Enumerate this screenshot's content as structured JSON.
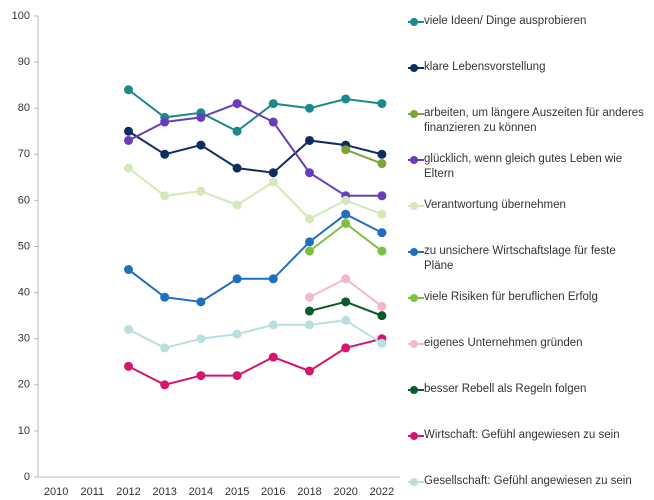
{
  "chart_data": {
    "type": "line",
    "categories": [
      "2010",
      "2011",
      "2012",
      "2013",
      "2014",
      "2015",
      "2016",
      "2018",
      "2020",
      "2022"
    ],
    "ylim": [
      0,
      100
    ],
    "yticks": [
      0,
      10,
      20,
      30,
      40,
      50,
      60,
      70,
      80,
      90,
      100
    ],
    "series": [
      {
        "name": "viele Ideen/ Dinge ausprobieren",
        "color": "#1a8a8a",
        "values": [
          null,
          null,
          84,
          78,
          79,
          75,
          81,
          80,
          82,
          81
        ]
      },
      {
        "name": "klare Lebensvorstellung",
        "color": "#0d2d5e",
        "values": [
          null,
          null,
          75,
          70,
          72,
          67,
          66,
          73,
          72,
          70
        ]
      },
      {
        "name": "arbeiten, um längere Auszeiten für anderes finanzieren zu können",
        "color": "#7fa33a",
        "values": [
          null,
          null,
          null,
          null,
          null,
          null,
          null,
          null,
          71,
          68
        ]
      },
      {
        "name": "glücklich, wenn gleich gutes Leben wie Eltern",
        "color": "#6a3db8",
        "values": [
          null,
          null,
          73,
          77,
          78,
          81,
          77,
          66,
          61,
          61
        ]
      },
      {
        "name": "Verantwortung übernehmen",
        "color": "#d5e8b8",
        "values": [
          null,
          null,
          67,
          61,
          62,
          59,
          64,
          56,
          60,
          57
        ]
      },
      {
        "name": "zu unsichere Wirtschaftslage für feste Pläne",
        "color": "#1f6fbf",
        "values": [
          null,
          null,
          45,
          39,
          38,
          43,
          43,
          51,
          57,
          53
        ]
      },
      {
        "name": "viele Risiken für beruflichen Erfolg",
        "color": "#7ac143",
        "values": [
          null,
          null,
          null,
          null,
          null,
          null,
          null,
          49,
          55,
          49
        ]
      },
      {
        "name": "eigenes Unternehmen gründen",
        "color": "#f5b8c8",
        "values": [
          null,
          null,
          null,
          null,
          null,
          null,
          null,
          39,
          43,
          37
        ]
      },
      {
        "name": "besser Rebell als Regeln folgen",
        "color": "#0a5a2a",
        "values": [
          null,
          null,
          null,
          null,
          null,
          null,
          null,
          36,
          38,
          35
        ]
      },
      {
        "name": "Wirtschaft: Gefühl angewiesen zu sein",
        "color": "#d4166e",
        "values": [
          null,
          null,
          24,
          20,
          22,
          22,
          26,
          23,
          28,
          30
        ]
      },
      {
        "name": "Gesellschaft: Gefühl angewiesen zu sein",
        "color": "#b8e0e0",
        "values": [
          null,
          null,
          32,
          28,
          30,
          31,
          33,
          33,
          34,
          29
        ]
      }
    ]
  }
}
